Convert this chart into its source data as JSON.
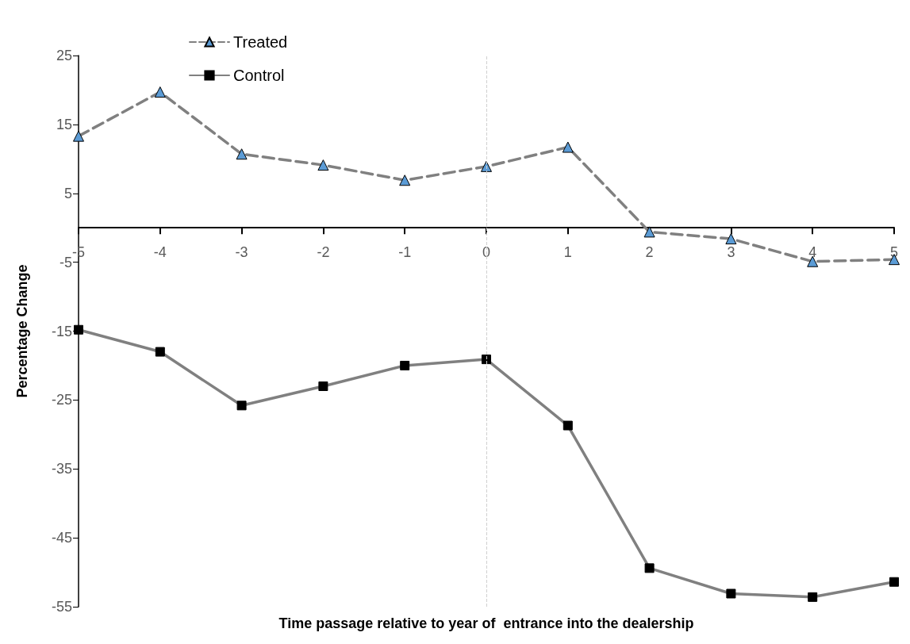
{
  "chart_data": {
    "type": "line",
    "xlabel": "Time passage relative to year of  entrance into the dealership",
    "ylabel": "Percentage Change",
    "x": [
      -5,
      -4,
      -3,
      -2,
      -1,
      0,
      1,
      2,
      3,
      4,
      5
    ],
    "series": [
      {
        "name": "Treated",
        "color": "#808080",
        "marker": "triangle",
        "line_style": "dashed",
        "colors": [
          "#5b9bd5",
          "#5b9bd5",
          "#5b9bd5",
          "#5b9bd5",
          "#5b9bd5",
          "#5b9bd5",
          "#5b9bd5",
          "#5b9bd5",
          "#5b9bd5",
          "#5b9bd5",
          "#5b9bd5"
        ],
        "values": [
          13.3,
          19.7,
          10.7,
          9.1,
          6.9,
          8.9,
          11.7,
          -0.6,
          -1.6,
          -4.9,
          -4.6
        ]
      },
      {
        "name": "Control",
        "color": "#808080",
        "marker": "square",
        "line_style": "solid",
        "colors": [
          "#000000",
          "#000000",
          "#000000",
          "#000000",
          "#000000",
          "#000000",
          "#000000",
          "#000000",
          "#000000",
          "#000000",
          "#000000"
        ],
        "values": [
          -14.8,
          -18.0,
          -25.8,
          -23.0,
          -20.0,
          -19.1,
          -28.7,
          -49.4,
          -53.1,
          -53.6,
          -51.4
        ]
      }
    ],
    "xlim": [
      -5,
      5
    ],
    "xticks": [
      -5,
      -4,
      -3,
      -2,
      -1,
      0,
      1,
      2,
      3,
      4,
      5
    ],
    "ylim": [
      -55,
      25
    ],
    "yticks": [
      -55,
      -45,
      -35,
      -25,
      -15,
      -5,
      5,
      15,
      25
    ],
    "ref_lines": [
      {
        "axis": "x",
        "value": 0,
        "color": "#d0d0d0",
        "line_style": "dashed"
      }
    ],
    "grid": false,
    "legend": "top left"
  }
}
